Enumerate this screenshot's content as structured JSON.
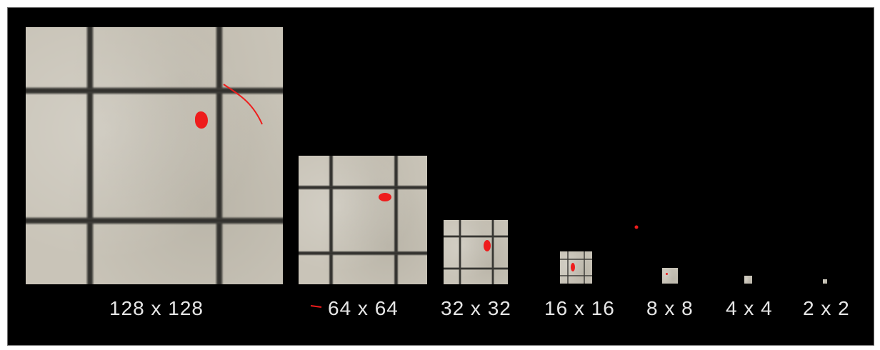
{
  "labels": {
    "s128": "128 x 128",
    "s64": "64 x 64",
    "s32": "32 x 32",
    "s16": "16 x 16",
    "s8": "8 x 8",
    "s4": "4 x 4",
    "s2": "2 x 2"
  },
  "colors": {
    "background": "#000000",
    "tile": "#c9c4b8",
    "grout": "#2f2e2b",
    "annotation": "#ee1c1c",
    "label_text": "#e6e6e6"
  }
}
